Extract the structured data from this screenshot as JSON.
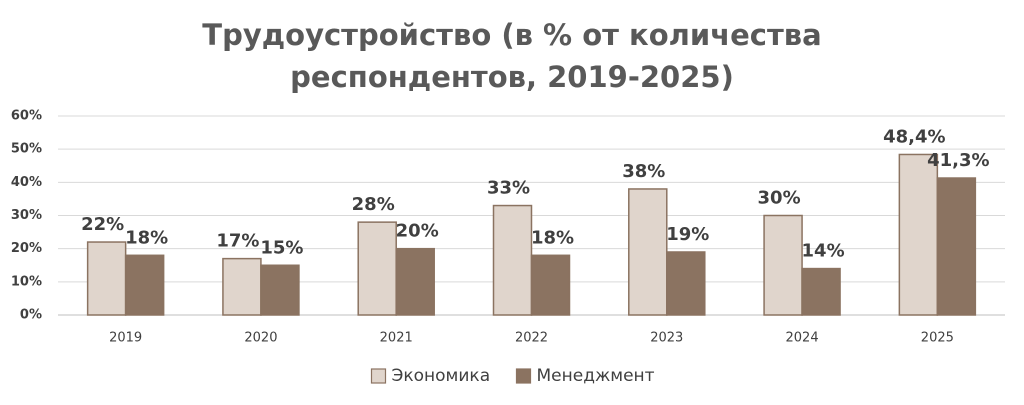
{
  "chart_data": {
    "type": "bar",
    "title": "Трудоустройство (в % от количества респондентов, 2019-2025)",
    "categories": [
      "2019",
      "2020",
      "2021",
      "2022",
      "2023",
      "2024",
      "2025"
    ],
    "series": [
      {
        "name": "Экономика",
        "color": "#e0d5cc",
        "values": [
          22,
          17,
          28,
          33,
          38,
          30,
          48.4
        ],
        "value_labels": [
          "22%",
          "17%",
          "28%",
          "33%",
          "38%",
          "30%",
          "48,4%"
        ]
      },
      {
        "name": "Менеджмент",
        "color": "#8b7361",
        "values": [
          18,
          15,
          20,
          18,
          19,
          14,
          41.3
        ],
        "value_labels": [
          "18%",
          "15%",
          "20%",
          "18%",
          "19%",
          "14%",
          "41,3%"
        ]
      }
    ],
    "ylim": [
      0,
      60
    ],
    "yticks": [
      {
        "value": 0,
        "label": "0%"
      },
      {
        "value": 10,
        "label": "10%"
      },
      {
        "value": 20,
        "label": "20%"
      },
      {
        "value": 30,
        "label": "30%"
      },
      {
        "value": 40,
        "label": "40%"
      },
      {
        "value": 50,
        "label": "50%"
      },
      {
        "value": 60,
        "label": "60%"
      }
    ],
    "grid": true,
    "legend": "bottom"
  }
}
